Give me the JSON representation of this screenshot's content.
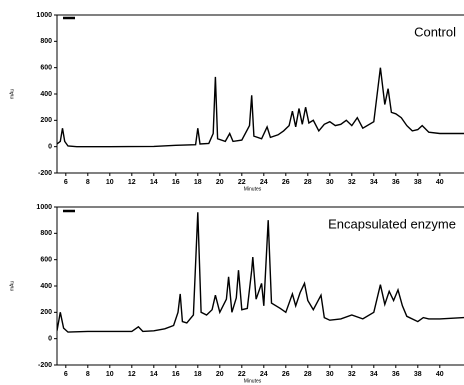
{
  "chart_data": [
    {
      "type": "line",
      "annotation": "Control",
      "x_label": "Minutes",
      "y_label": "mAu",
      "color": "#000000",
      "xlim": [
        5.2,
        42.2
      ],
      "ylim": [
        -200,
        1000
      ],
      "xticks": [
        6,
        8,
        10,
        12,
        14,
        16,
        18,
        20,
        22,
        24,
        26,
        28,
        30,
        32,
        34,
        36,
        38,
        40
      ],
      "yticks": [
        -200,
        0,
        200,
        400,
        600,
        800,
        1000
      ],
      "x": [
        5.2,
        5.5,
        5.7,
        5.9,
        6.2,
        7,
        10,
        14,
        16,
        17.8,
        18,
        18.2,
        19,
        19.4,
        19.6,
        19.8,
        20.5,
        20.9,
        21.2,
        22,
        22.7,
        22.9,
        23.1,
        23.8,
        24.3,
        24.6,
        25.3,
        25.8,
        26.3,
        26.6,
        26.9,
        27.2,
        27.5,
        27.8,
        28.1,
        28.5,
        29,
        29.5,
        30,
        30.5,
        31,
        31.5,
        32,
        32.5,
        33,
        34,
        34.6,
        35,
        35.3,
        35.6,
        36,
        36.5,
        37,
        37.5,
        38,
        38.4,
        39,
        40,
        42.2
      ],
      "values": [
        20,
        40,
        140,
        40,
        5,
        0,
        0,
        2,
        10,
        15,
        140,
        20,
        25,
        100,
        530,
        60,
        40,
        100,
        40,
        50,
        160,
        390,
        80,
        60,
        150,
        70,
        90,
        120,
        160,
        270,
        150,
        290,
        170,
        300,
        180,
        200,
        120,
        170,
        190,
        160,
        170,
        200,
        160,
        220,
        140,
        190,
        600,
        320,
        440,
        260,
        250,
        220,
        160,
        120,
        130,
        160,
        110,
        100,
        100
      ]
    },
    {
      "type": "line",
      "annotation": "Encapsulated enzyme",
      "x_label": "Minutes",
      "y_label": "mAu",
      "color": "#000000",
      "xlim": [
        5.2,
        42.2
      ],
      "ylim": [
        -200,
        1000
      ],
      "xticks": [
        6,
        8,
        10,
        12,
        14,
        16,
        18,
        20,
        22,
        24,
        26,
        28,
        30,
        32,
        34,
        36,
        38,
        40
      ],
      "yticks": [
        -200,
        0,
        200,
        400,
        600,
        800,
        1000
      ],
      "x": [
        5.2,
        5.5,
        5.8,
        6.2,
        8,
        10,
        12,
        12.6,
        13,
        14,
        15,
        15.8,
        16.2,
        16.4,
        16.6,
        17,
        17.6,
        18,
        18.3,
        18.8,
        19.3,
        19.6,
        20,
        20.6,
        20.8,
        21.1,
        21.5,
        21.7,
        22,
        22.5,
        22.9,
        23,
        23.3,
        23.8,
        24,
        24.4,
        24.7,
        25.5,
        26,
        26.6,
        26.9,
        27.3,
        27.7,
        28,
        28.5,
        29.2,
        29.5,
        30,
        31,
        32,
        33,
        34,
        34.6,
        35,
        35.4,
        35.8,
        36.2,
        36.6,
        37,
        38,
        38.5,
        39,
        40,
        42.2
      ],
      "values": [
        60,
        200,
        80,
        50,
        55,
        55,
        55,
        90,
        55,
        60,
        75,
        100,
        200,
        340,
        130,
        120,
        180,
        960,
        200,
        180,
        220,
        330,
        200,
        300,
        470,
        200,
        310,
        520,
        220,
        230,
        520,
        620,
        300,
        420,
        250,
        900,
        270,
        230,
        200,
        340,
        250,
        350,
        420,
        290,
        220,
        330,
        160,
        140,
        150,
        180,
        150,
        200,
        410,
        260,
        360,
        290,
        370,
        250,
        170,
        130,
        160,
        150,
        150,
        160
      ]
    }
  ]
}
